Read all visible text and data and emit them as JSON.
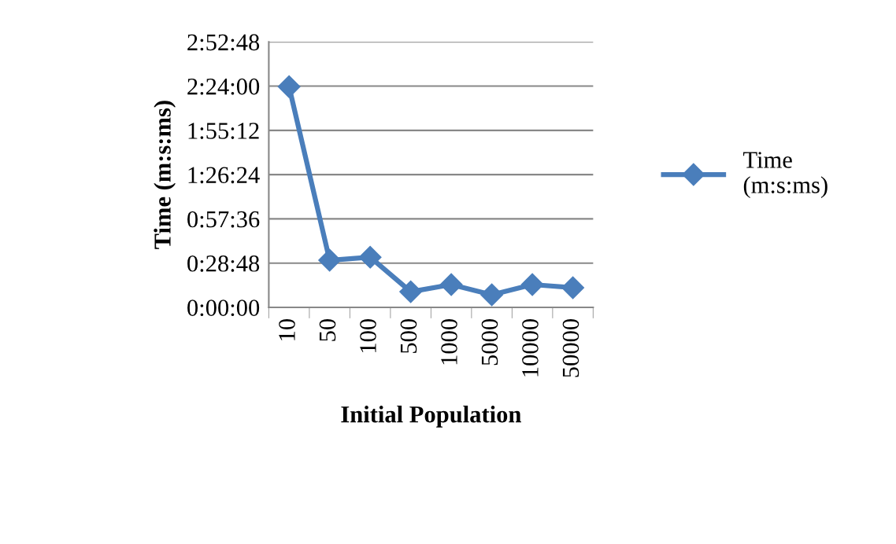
{
  "chart_data": {
    "type": "line",
    "xlabel": "Initial Population",
    "ylabel": "Time (m:s:ms)",
    "categories": [
      "10",
      "50",
      "100",
      "500",
      "1000",
      "5000",
      "10000",
      "50000"
    ],
    "series": [
      {
        "name": "Time\n(m:s:ms)",
        "color": "#4a7ebb",
        "values": [
          8620,
          1840,
          1960,
          610,
          890,
          490,
          890,
          770
        ]
      }
    ],
    "ylim": [
      0,
      10368
    ],
    "yticks": [
      {
        "value": 0,
        "label": "0:00:00"
      },
      {
        "value": 1728,
        "label": "0:28:48"
      },
      {
        "value": 3456,
        "label": "0:57:36"
      },
      {
        "value": 5184,
        "label": "1:26:24"
      },
      {
        "value": 6912,
        "label": "1:55:12"
      },
      {
        "value": 8640,
        "label": "2:24:00"
      },
      {
        "value": 10368,
        "label": "2:52:48"
      }
    ],
    "grid": "y",
    "legend": "right",
    "marker": "diamond",
    "line_style": "solid"
  }
}
